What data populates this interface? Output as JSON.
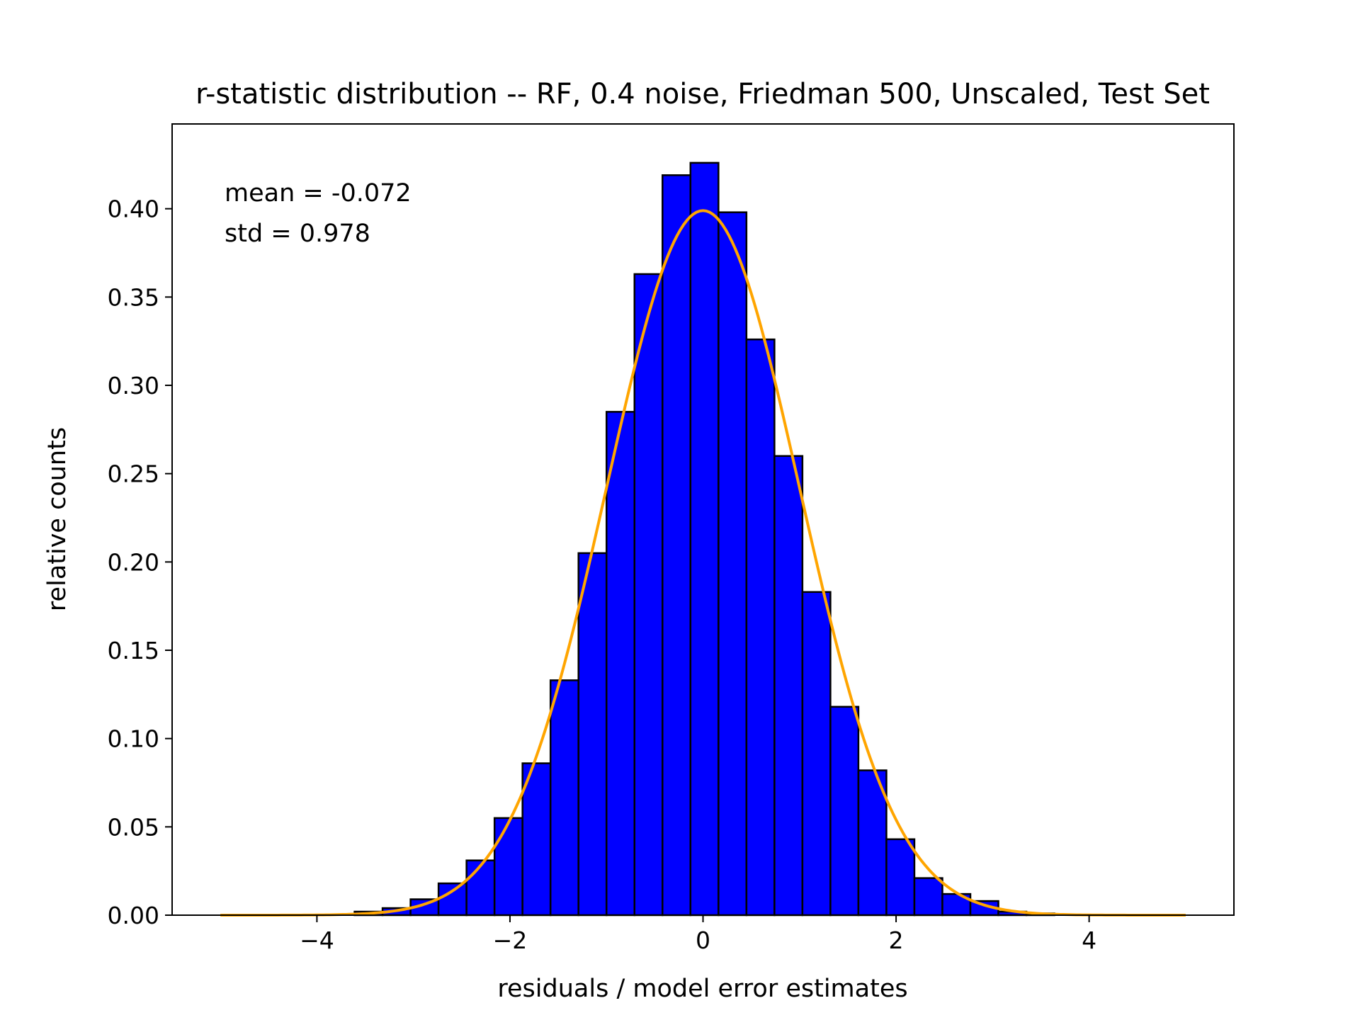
{
  "chart_data": {
    "type": "bar",
    "title": "r-statistic distribution -- RF, 0.4 noise, Friedman 500, Unscaled, Test Set",
    "xlabel": "residuals / model error estimates",
    "ylabel": "relative counts",
    "xlim": [
      -5.5,
      5.5
    ],
    "ylim": [
      0,
      0.448
    ],
    "xticks": [
      -4,
      -2,
      0,
      2,
      4
    ],
    "xtick_labels": [
      "−4",
      "−2",
      "0",
      "2",
      "4"
    ],
    "yticks": [
      0,
      0.05,
      0.1,
      0.15,
      0.2,
      0.25,
      0.3,
      0.35,
      0.4
    ],
    "ytick_labels": [
      "0.00",
      "0.05",
      "0.10",
      "0.15",
      "0.20",
      "0.25",
      "0.30",
      "0.35",
      "0.40"
    ],
    "grid": false,
    "bins": [
      {
        "x0": -3.61,
        "x1": -3.32,
        "value": 0.002
      },
      {
        "x0": -3.32,
        "x1": -3.03,
        "value": 0.004
      },
      {
        "x0": -3.03,
        "x1": -2.74,
        "value": 0.009
      },
      {
        "x0": -2.74,
        "x1": -2.45,
        "value": 0.018
      },
      {
        "x0": -2.45,
        "x1": -2.16,
        "value": 0.031
      },
      {
        "x0": -2.16,
        "x1": -1.87,
        "value": 0.055
      },
      {
        "x0": -1.87,
        "x1": -1.58,
        "value": 0.086
      },
      {
        "x0": -1.58,
        "x1": -1.29,
        "value": 0.133
      },
      {
        "x0": -1.29,
        "x1": -1.0,
        "value": 0.205
      },
      {
        "x0": -1.0,
        "x1": -0.71,
        "value": 0.285
      },
      {
        "x0": -0.71,
        "x1": -0.42,
        "value": 0.363
      },
      {
        "x0": -0.42,
        "x1": -0.13,
        "value": 0.419
      },
      {
        "x0": -0.13,
        "x1": 0.16,
        "value": 0.426
      },
      {
        "x0": 0.16,
        "x1": 0.45,
        "value": 0.398
      },
      {
        "x0": 0.45,
        "x1": 0.74,
        "value": 0.326
      },
      {
        "x0": 0.74,
        "x1": 1.03,
        "value": 0.26
      },
      {
        "x0": 1.03,
        "x1": 1.32,
        "value": 0.183
      },
      {
        "x0": 1.32,
        "x1": 1.61,
        "value": 0.118
      },
      {
        "x0": 1.61,
        "x1": 1.9,
        "value": 0.082
      },
      {
        "x0": 1.9,
        "x1": 2.19,
        "value": 0.043
      },
      {
        "x0": 2.19,
        "x1": 2.48,
        "value": 0.021
      },
      {
        "x0": 2.48,
        "x1": 2.77,
        "value": 0.012
      },
      {
        "x0": 2.77,
        "x1": 3.06,
        "value": 0.008
      },
      {
        "x0": 3.06,
        "x1": 3.35,
        "value": 0.002
      },
      {
        "x0": 3.35,
        "x1": 3.64,
        "value": 0.001
      }
    ],
    "bar_color": "#0000ff",
    "bar_edge_color": "#000000",
    "curve": {
      "type": "standard-normal-pdf",
      "mean": 0,
      "std": 1,
      "x_range": [
        -5,
        5
      ],
      "color": "#ffa500"
    },
    "annotations": [
      {
        "text": "mean = -0.072",
        "x": -5,
        "y": 0.4
      },
      {
        "text": "std = 0.978",
        "x": -5,
        "y": 0.377
      }
    ]
  }
}
